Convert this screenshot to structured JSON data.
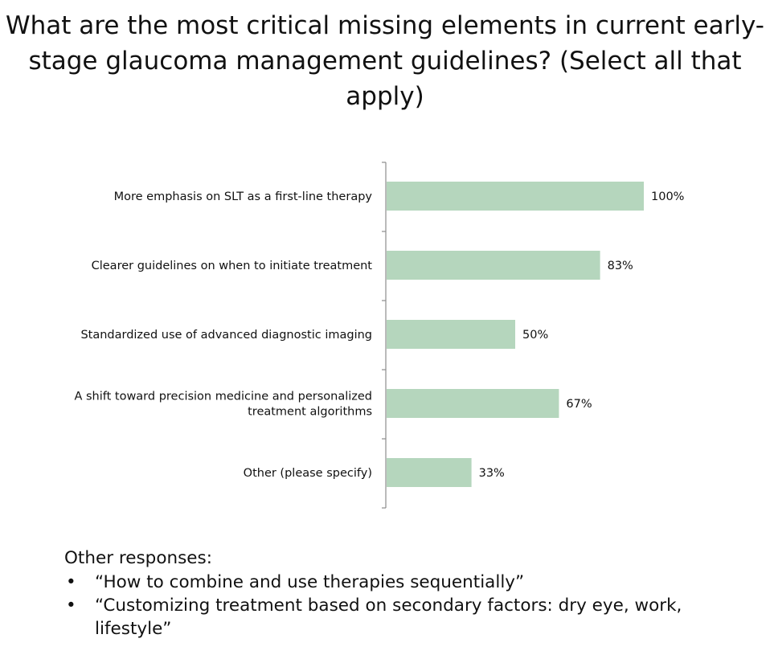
{
  "chart_data": {
    "type": "bar",
    "orientation": "horizontal",
    "title_lines": [
      "What are the most critical missing elements in current early-",
      "stage glaucoma management guidelines? (Select all that",
      "apply)"
    ],
    "categories": [
      [
        "More emphasis on SLT as a first-line therapy"
      ],
      [
        "Clearer guidelines on when to initiate treatment"
      ],
      [
        "Standardized use of advanced diagnostic imaging"
      ],
      [
        "A shift toward precision medicine and personalized",
        "treatment algorithms"
      ],
      [
        "Other (please specify)"
      ]
    ],
    "values": [
      100,
      83,
      50,
      67,
      33
    ],
    "value_labels": [
      "100%",
      "83%",
      "50%",
      "67%",
      "33%"
    ],
    "xlim": [
      0,
      100
    ],
    "bar_color": "#b5d6bd",
    "axis_color": "#8c8c8c",
    "grid": false,
    "legend": "none"
  },
  "other_responses": {
    "heading": "Other responses:",
    "items": [
      [
        "“How to combine and use therapies sequentially”"
      ],
      [
        "“Customizing treatment based on secondary factors: dry eye, work,",
        "lifestyle”"
      ]
    ]
  }
}
